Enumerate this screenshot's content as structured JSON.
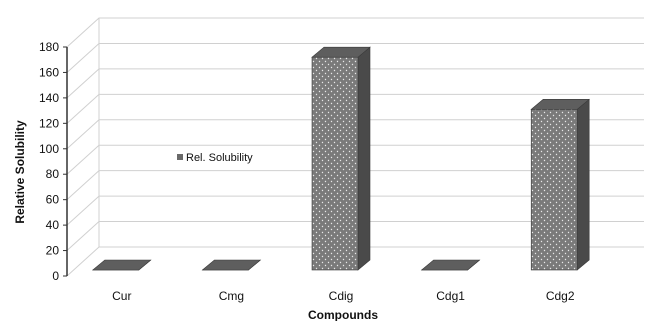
{
  "chart_data": {
    "type": "bar",
    "style": "3d-column",
    "categories": [
      "Cur",
      "Cmg",
      "Cdig",
      "Cdg1",
      "Cdg2"
    ],
    "series": [
      {
        "name": "Rel. Solubility",
        "values": [
          1,
          2,
          172,
          1,
          131
        ]
      }
    ],
    "xlabel": "Compounds",
    "ylabel": "Relative Solubility",
    "ylim": [
      0,
      180
    ],
    "yticks": [
      0,
      20,
      40,
      60,
      80,
      100,
      120,
      140,
      160,
      180
    ],
    "grid": true,
    "legend": {
      "position": "left-middle",
      "label": "Rel. Solubility"
    },
    "colors": {
      "bar_front": "#7a7a7a",
      "bar_side": "#4a4a4a",
      "bar_top": "#5e5e5e",
      "grid": "#d0d0d0",
      "axis": "#333333"
    }
  }
}
